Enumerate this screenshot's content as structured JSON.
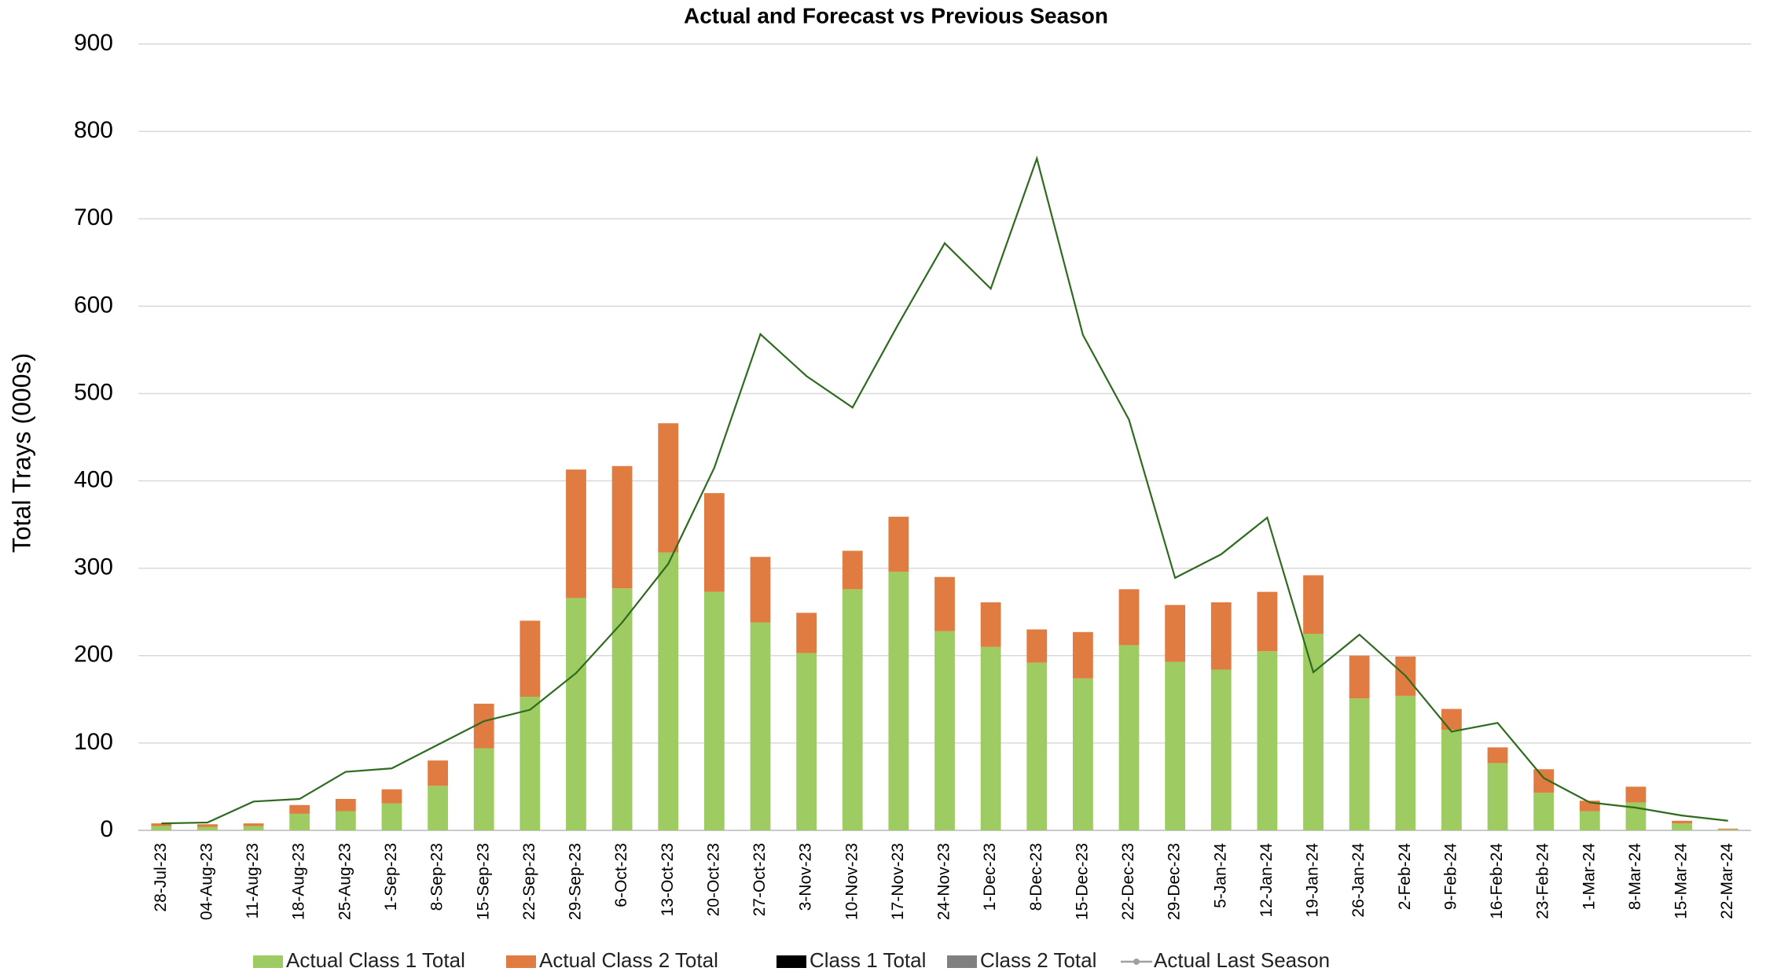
{
  "chart_data": {
    "type": "bar",
    "stacked": true,
    "title": "Actual and Forecast vs Previous Season",
    "y_label": "Total Trays (000s)",
    "categories": [
      "28-Jul-23",
      "04-Aug-23",
      "11-Aug-23",
      "18-Aug-23",
      "25-Aug-23",
      "1-Sep-23",
      "8-Sep-23",
      "15-Sep-23",
      "22-Sep-23",
      "29-Sep-23",
      "6-Oct-23",
      "13-Oct-23",
      "20-Oct-23",
      "27-Oct-23",
      "3-Nov-23",
      "10-Nov-23",
      "17-Nov-23",
      "24-Nov-23",
      "1-Dec-23",
      "8-Dec-23",
      "15-Dec-23",
      "22-Dec-23",
      "29-Dec-23",
      "5-Jan-24",
      "12-Jan-24",
      "19-Jan-24",
      "26-Jan-24",
      "2-Feb-24",
      "9-Feb-24",
      "16-Feb-24",
      "23-Feb-24",
      "1-Mar-24",
      "8-Mar-24",
      "15-Mar-24",
      "22-Mar-24"
    ],
    "series": [
      {
        "name": "Actual Class 1 Total",
        "type": "bar",
        "color": "#9ecb62",
        "values": [
          5,
          4,
          5,
          19,
          22,
          31,
          51,
          94,
          153,
          266,
          277,
          318,
          273,
          238,
          203,
          276,
          296,
          228,
          210,
          192,
          174,
          212,
          193,
          184,
          205,
          225,
          151,
          154,
          115,
          77,
          43,
          22,
          32,
          8,
          1
        ]
      },
      {
        "name": "Actual Class 2 Total",
        "type": "bar",
        "color": "#e07b42",
        "values": [
          3,
          3,
          3,
          10,
          14,
          16,
          29,
          51,
          87,
          147,
          140,
          148,
          113,
          75,
          46,
          44,
          63,
          62,
          51,
          38,
          53,
          64,
          65,
          77,
          68,
          67,
          49,
          45,
          24,
          18,
          27,
          12,
          18,
          3,
          1
        ]
      },
      {
        "name": "Class 1 Total",
        "type": "bar",
        "color": "#000000",
        "values": [
          null,
          null,
          null,
          null,
          null,
          null,
          null,
          null,
          null,
          null,
          null,
          null,
          null,
          null,
          null,
          null,
          null,
          null,
          null,
          null,
          null,
          null,
          null,
          null,
          null,
          null,
          null,
          null,
          null,
          null,
          null,
          null,
          null,
          null,
          null
        ]
      },
      {
        "name": "Class 2 Total",
        "type": "bar",
        "color": "#808080",
        "values": [
          null,
          null,
          null,
          null,
          null,
          null,
          null,
          null,
          null,
          null,
          null,
          null,
          null,
          null,
          null,
          null,
          null,
          null,
          null,
          null,
          null,
          null,
          null,
          null,
          null,
          null,
          null,
          null,
          null,
          null,
          null,
          null,
          null,
          null,
          null
        ]
      },
      {
        "name": "Actual Last Season",
        "type": "line",
        "color": "#2e6b1f",
        "legend_color": "#a0a0a0",
        "values": [
          8,
          9,
          33,
          36,
          67,
          71,
          98,
          125,
          138,
          180,
          238,
          305,
          415,
          568,
          520,
          484,
          580,
          672,
          620,
          769,
          567,
          470,
          289,
          316,
          358,
          181,
          224,
          177,
          113,
          123,
          60,
          32,
          26,
          17,
          11
        ]
      }
    ],
    "ylim": [
      0,
      900
    ],
    "yticks": [
      0,
      100,
      200,
      300,
      400,
      500,
      600,
      700,
      800,
      900
    ],
    "grid": true,
    "legend": "bottom"
  }
}
